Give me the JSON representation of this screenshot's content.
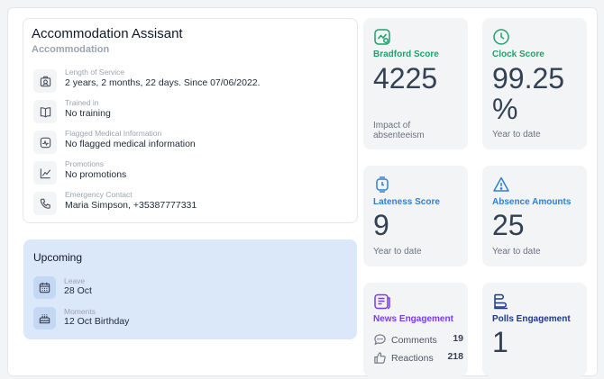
{
  "profile": {
    "title": "Accommodation Assisant",
    "subtitle": "Accommodation",
    "rows": [
      {
        "icon": "badge-icon",
        "label": "Length of Service",
        "value": "2 years, 2 months, 22 days. Since 07/06/2022."
      },
      {
        "icon": "book-icon",
        "label": "Trained in",
        "value": "No training"
      },
      {
        "icon": "medical-icon",
        "label": "Flagged Medical Information",
        "value": "No flagged medical information"
      },
      {
        "icon": "chart-line-icon",
        "label": "Promotions",
        "value": "No promotions"
      },
      {
        "icon": "phone-icon",
        "label": "Emergency Contact",
        "value": "Maria Simpson, +35387777331"
      }
    ]
  },
  "upcoming": {
    "title": "Upcoming",
    "items": [
      {
        "icon": "calendar-icon",
        "label": "Leave",
        "value": "28 Oct"
      },
      {
        "icon": "cake-icon",
        "label": "Moments",
        "value": "12 Oct Birthday"
      }
    ]
  },
  "tiles": {
    "bradford": {
      "icon": "bradford-icon",
      "label": "Bradford Score",
      "value": "4225",
      "foot": "Impact of absenteeism",
      "color": "#22a06b"
    },
    "clock": {
      "icon": "clock-icon",
      "label": "Clock Score",
      "value": "99.25 %",
      "foot": "Year to date",
      "color": "#22a06b"
    },
    "lateness": {
      "icon": "stopwatch-icon",
      "label": "Lateness Score",
      "value": "9",
      "foot": "Year to date",
      "color": "#2f80d1"
    },
    "absence": {
      "icon": "warning-icon",
      "label": "Absence Amounts",
      "value": "25",
      "foot": "Year to date",
      "color": "#2f80d1"
    },
    "news": {
      "icon": "news-icon",
      "label": "News Engagement",
      "color": "#7c3aed",
      "comments_label": "Comments",
      "comments_count": "19",
      "reactions_label": "Reactions",
      "reactions_count": "218"
    },
    "polls": {
      "icon": "poll-icon",
      "label": "Polls Engagement",
      "value": "1",
      "color": "#1e3a8a"
    }
  }
}
